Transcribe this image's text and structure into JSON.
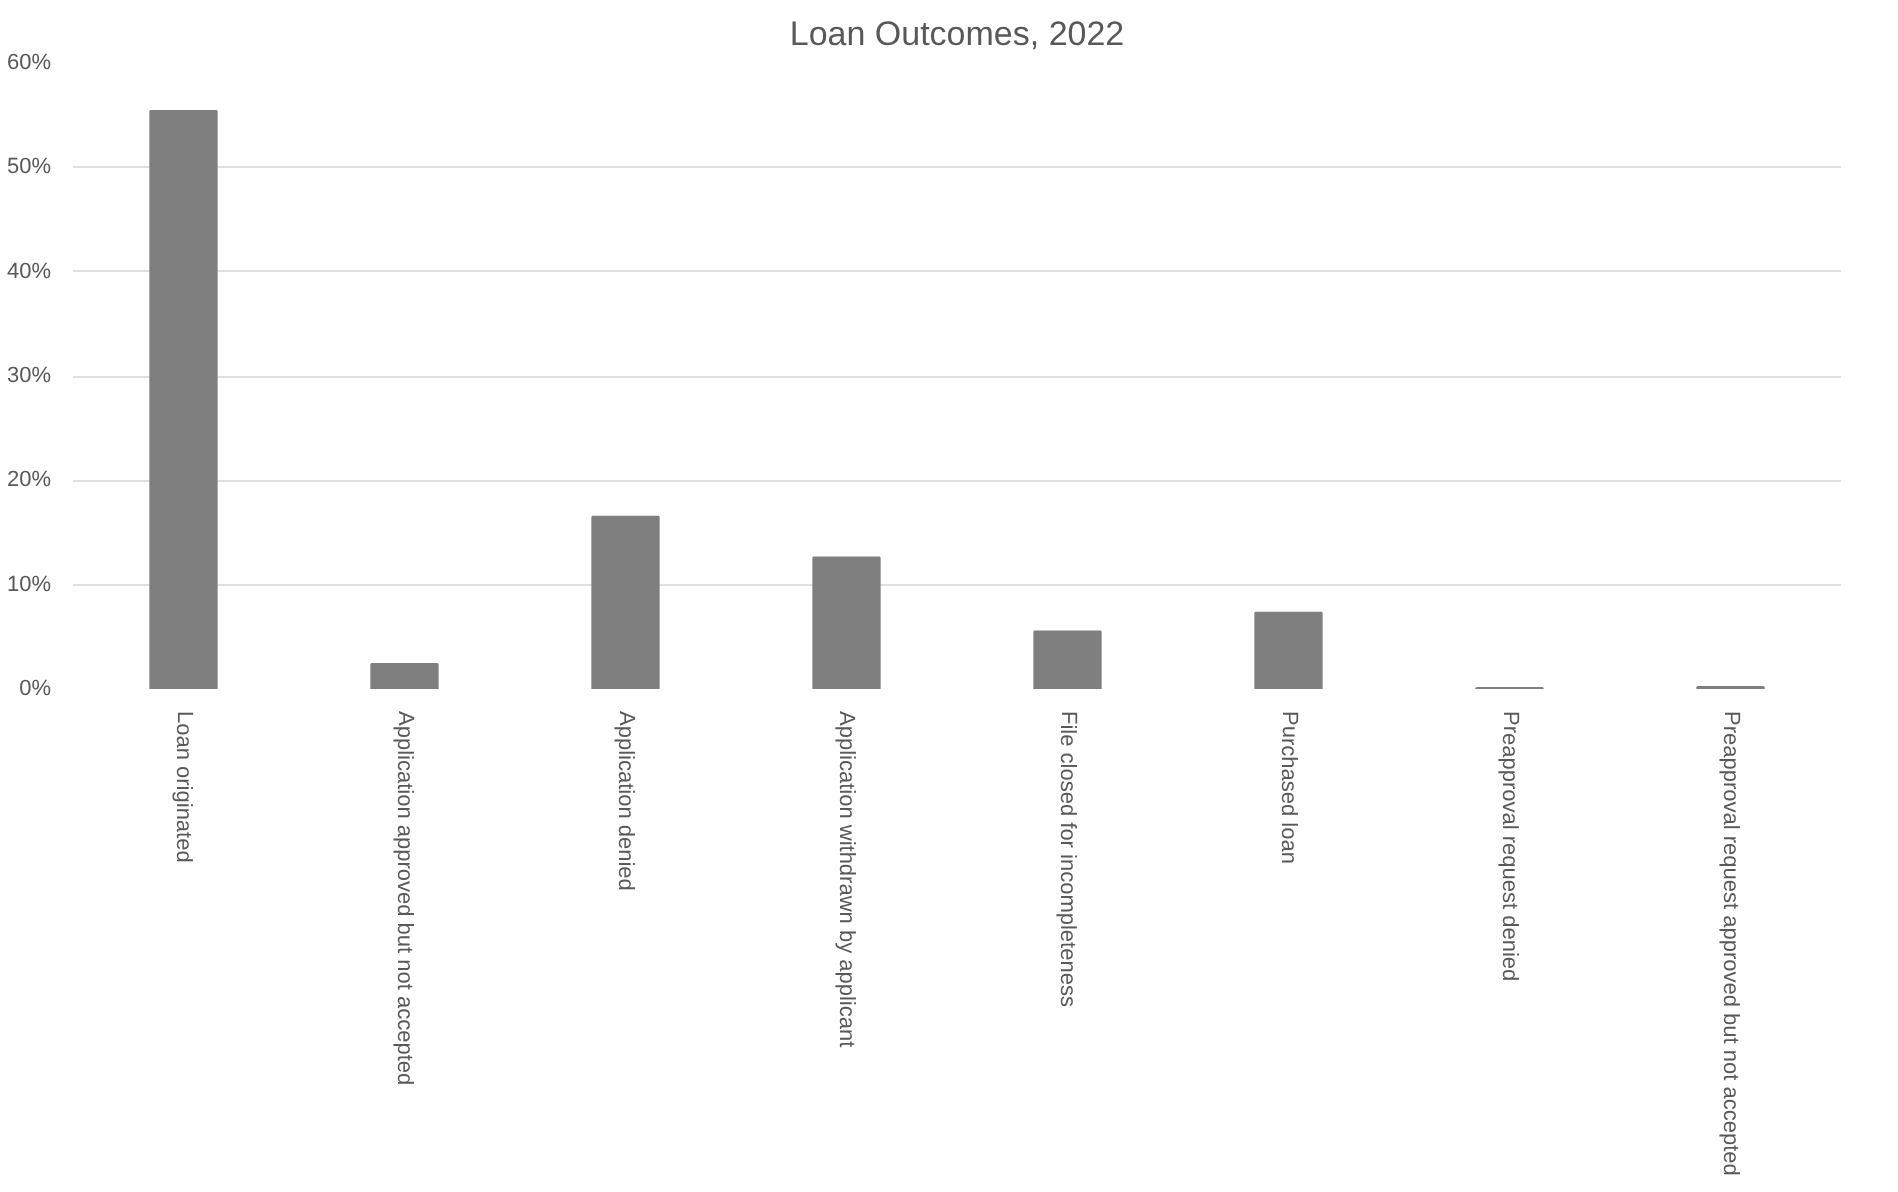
{
  "chart_data": {
    "type": "bar",
    "title": "Loan Outcomes, 2022",
    "categories": [
      "Loan originated",
      "Application approved but not accepted",
      "Application denied",
      "Application withdrawn by applicant",
      "File closed for incompleteness",
      "Purchased loan",
      "Preapproval request denied",
      "Preapproval request approved but not accepted"
    ],
    "values": [
      55.4,
      2.4,
      16.5,
      12.6,
      5.5,
      7.3,
      0.1,
      0.2
    ],
    "color": "#7f7f7f",
    "ylim": [
      0,
      60
    ],
    "yticks": [
      {
        "value": 0,
        "label": "0%"
      },
      {
        "value": 10,
        "label": "10%"
      },
      {
        "value": 20,
        "label": "20%"
      },
      {
        "value": 30,
        "label": "30%"
      },
      {
        "value": 40,
        "label": "40%"
      },
      {
        "value": 50,
        "label": "50%"
      },
      {
        "value": 60,
        "label": "60%"
      }
    ],
    "grid": "y"
  }
}
